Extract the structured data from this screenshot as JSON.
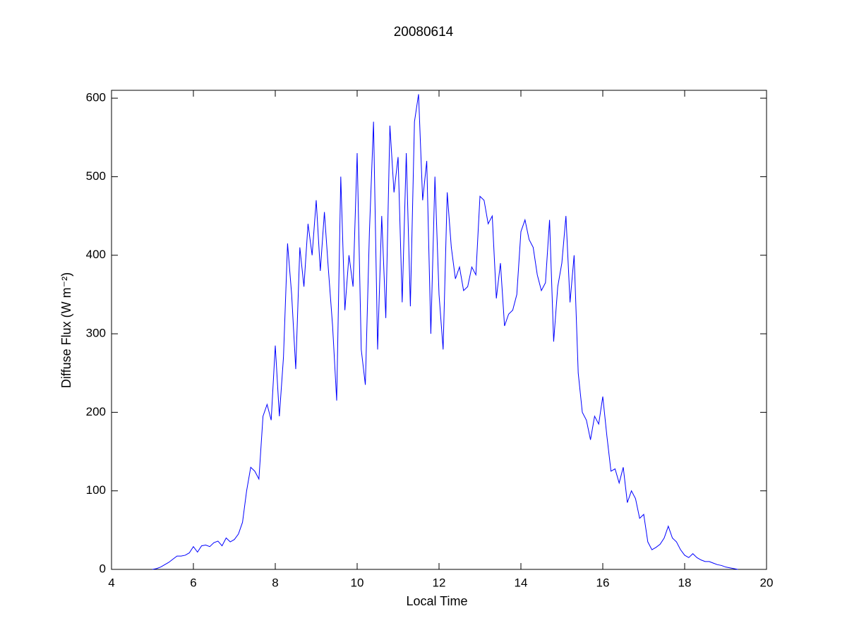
{
  "chart_data": {
    "type": "line",
    "title": "20080614",
    "xlabel": "Local Time",
    "ylabel": "Diffuse Flux (W m⁻²)",
    "xlim": [
      4,
      20
    ],
    "xticks": [
      4,
      6,
      8,
      10,
      12,
      14,
      16,
      18,
      20
    ],
    "ylim": [
      0,
      610
    ],
    "yticks": [
      0,
      100,
      200,
      300,
      400,
      500,
      600
    ],
    "grid": false,
    "series": [
      {
        "color": "#0000ff",
        "x": [
          5.0,
          5.1,
          5.2,
          5.3,
          5.4,
          5.5,
          5.6,
          5.7,
          5.8,
          5.9,
          6.0,
          6.1,
          6.2,
          6.3,
          6.4,
          6.5,
          6.6,
          6.7,
          6.8,
          6.9,
          7.0,
          7.1,
          7.2,
          7.3,
          7.4,
          7.5,
          7.6,
          7.7,
          7.8,
          7.9,
          8.0,
          8.1,
          8.2,
          8.3,
          8.4,
          8.5,
          8.6,
          8.7,
          8.8,
          8.9,
          9.0,
          9.1,
          9.2,
          9.3,
          9.4,
          9.5,
          9.6,
          9.7,
          9.8,
          9.9,
          10.0,
          10.1,
          10.2,
          10.3,
          10.4,
          10.5,
          10.6,
          10.7,
          10.8,
          10.9,
          11.0,
          11.1,
          11.2,
          11.3,
          11.4,
          11.5,
          11.6,
          11.7,
          11.8,
          11.9,
          12.0,
          12.1,
          12.2,
          12.3,
          12.4,
          12.5,
          12.6,
          12.7,
          12.8,
          12.9,
          13.0,
          13.1,
          13.2,
          13.3,
          13.4,
          13.5,
          13.6,
          13.7,
          13.8,
          13.9,
          14.0,
          14.1,
          14.2,
          14.3,
          14.4,
          14.5,
          14.6,
          14.7,
          14.8,
          14.9,
          15.0,
          15.1,
          15.2,
          15.3,
          15.4,
          15.5,
          15.6,
          15.7,
          15.8,
          15.9,
          16.0,
          16.1,
          16.2,
          16.3,
          16.4,
          16.5,
          16.6,
          16.7,
          16.8,
          16.9,
          17.0,
          17.1,
          17.2,
          17.3,
          17.4,
          17.5,
          17.6,
          17.7,
          17.8,
          17.9,
          18.0,
          18.1,
          18.2,
          18.3,
          18.4,
          18.5,
          18.6,
          18.7,
          18.8,
          18.9,
          19.0,
          19.1,
          19.2,
          19.3
        ],
        "values": [
          0,
          1,
          3,
          6,
          9,
          13,
          17,
          17,
          18,
          21,
          29,
          22,
          30,
          31,
          29,
          34,
          36,
          30,
          40,
          35,
          38,
          45,
          60,
          100,
          130,
          125,
          115,
          195,
          210,
          190,
          285,
          195,
          270,
          415,
          350,
          255,
          410,
          360,
          440,
          400,
          470,
          380,
          455,
          380,
          310,
          215,
          500,
          330,
          400,
          360,
          530,
          280,
          235,
          430,
          570,
          280,
          450,
          320,
          565,
          480,
          525,
          340,
          530,
          335,
          570,
          605,
          470,
          520,
          300,
          500,
          350,
          280,
          480,
          410,
          370,
          385,
          355,
          360,
          385,
          375,
          475,
          470,
          440,
          450,
          345,
          390,
          310,
          325,
          330,
          350,
          430,
          445,
          420,
          410,
          375,
          355,
          365,
          445,
          290,
          360,
          390,
          450,
          340,
          400,
          250,
          200,
          190,
          165,
          195,
          185,
          220,
          170,
          125,
          128,
          110,
          130,
          85,
          100,
          90,
          65,
          70,
          35,
          25,
          28,
          32,
          40,
          55,
          40,
          35,
          25,
          18,
          15,
          20,
          15,
          12,
          10,
          10,
          8,
          6,
          5,
          3,
          2,
          1,
          0
        ]
      }
    ]
  }
}
